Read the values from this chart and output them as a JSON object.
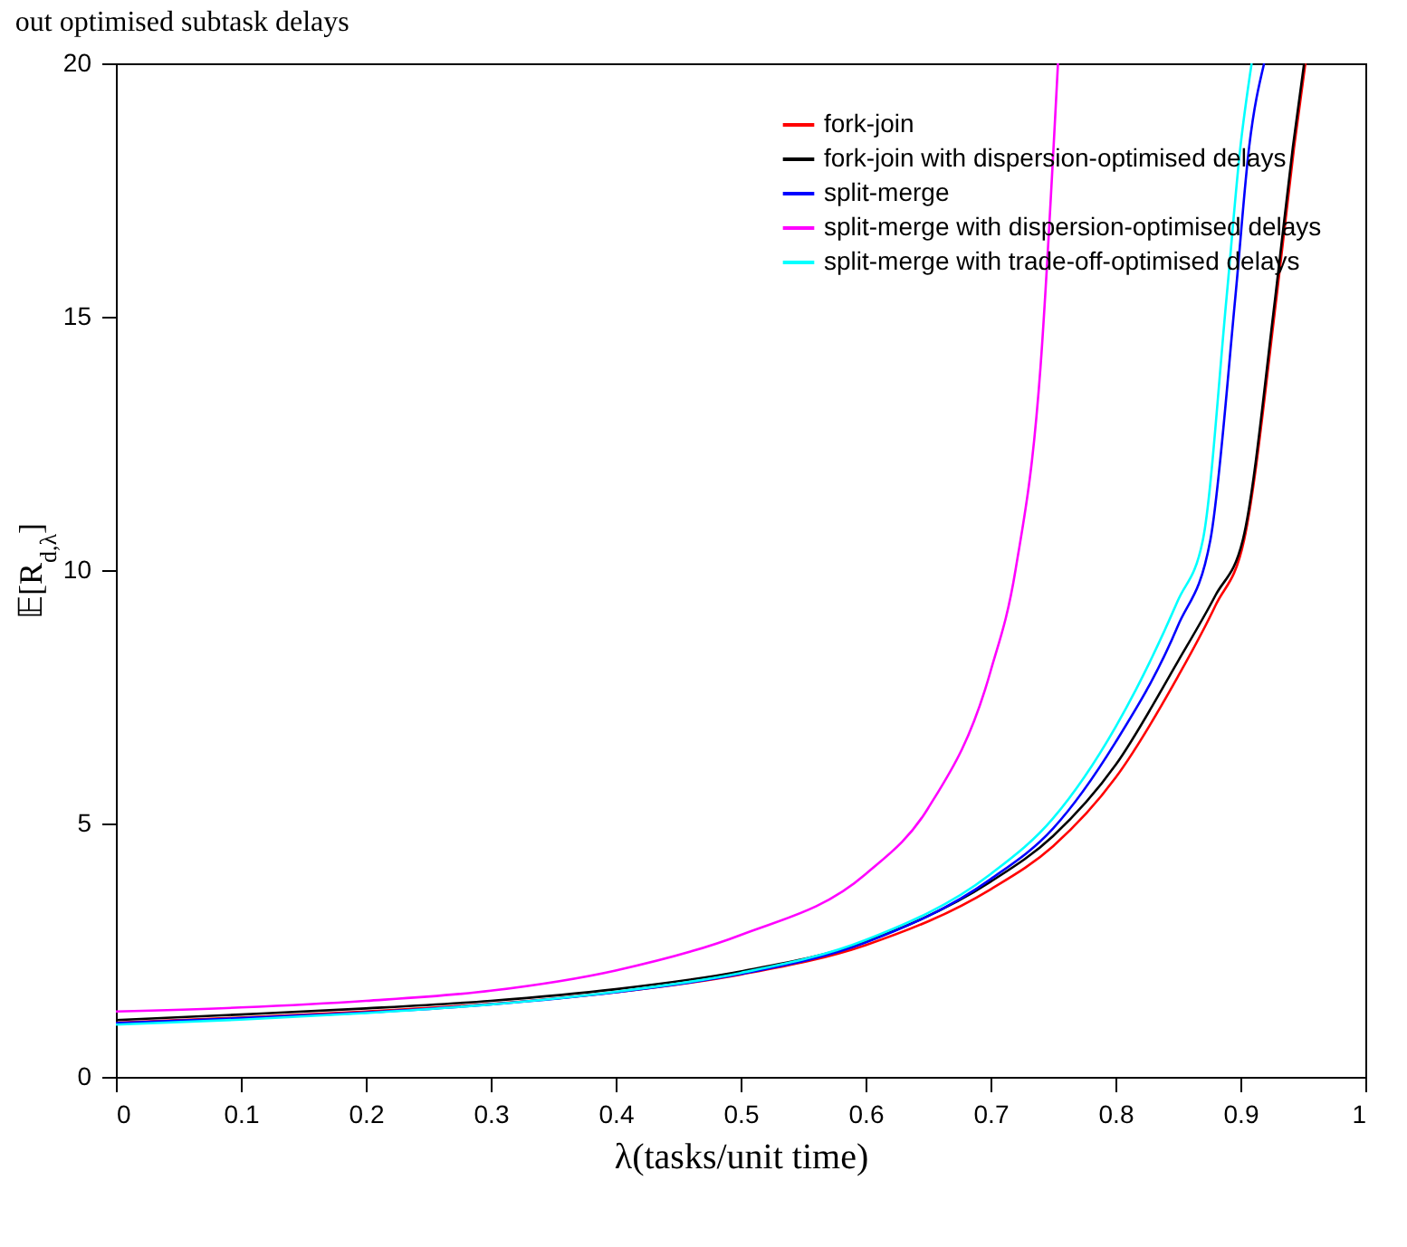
{
  "chart_data": {
    "type": "line",
    "title": "out optimised subtask delays",
    "xlabel": "λ(tasks/unit time)",
    "ylabel": "𝔼[R$_{d,λ}$]",
    "xlim": [
      0,
      1
    ],
    "ylim": [
      0,
      20
    ],
    "xticks": [
      0,
      0.1,
      0.2,
      0.3,
      0.4,
      0.5,
      0.6,
      0.7,
      0.8,
      0.9,
      1
    ],
    "yticks": [
      0,
      5,
      10,
      15,
      20
    ],
    "grid": false,
    "legend": "top right",
    "marker": "none",
    "line_style": "solid",
    "series": [
      {
        "name": "fork-join",
        "color": "#ff0000",
        "x": [
          0,
          0.1,
          0.2,
          0.3,
          0.4,
          0.5,
          0.6,
          0.7,
          0.75,
          0.8,
          0.85,
          0.88,
          0.903,
          0.929,
          0.943,
          0.952
        ],
        "values": [
          1.07,
          1.17,
          1.29,
          1.44,
          1.67,
          2.02,
          2.6,
          3.7,
          4.55,
          5.9,
          7.9,
          9.3,
          10.6,
          15.4,
          18.35,
          20
        ]
      },
      {
        "name": "fork-join with dispersion-optimised delays",
        "color": "#000000",
        "x": [
          0,
          0.1,
          0.2,
          0.3,
          0.4,
          0.5,
          0.6,
          0.7,
          0.75,
          0.8,
          0.85,
          0.88,
          0.902,
          0.928,
          0.942,
          0.951
        ],
        "values": [
          1.12,
          1.23,
          1.35,
          1.5,
          1.73,
          2.08,
          2.67,
          3.85,
          4.75,
          6.15,
          8.2,
          9.5,
          10.6,
          15.4,
          18.35,
          20
        ]
      },
      {
        "name": "split-merge",
        "color": "#0000ff",
        "x": [
          0,
          0.1,
          0.2,
          0.3,
          0.4,
          0.5,
          0.6,
          0.7,
          0.75,
          0.8,
          0.85,
          0.876,
          0.896,
          0.907,
          0.919
        ],
        "values": [
          1.06,
          1.16,
          1.27,
          1.43,
          1.67,
          2.03,
          2.65,
          3.9,
          4.9,
          6.6,
          8.9,
          10.6,
          15.4,
          18.35,
          20
        ]
      },
      {
        "name": "split-merge with dispersion-optimised delays",
        "color": "#ff00ff",
        "x": [
          0,
          0.1,
          0.2,
          0.3,
          0.4,
          0.5,
          0.6,
          0.65,
          0.7,
          0.72,
          0.74,
          0.754
        ],
        "values": [
          1.29,
          1.37,
          1.5,
          1.7,
          2.1,
          2.8,
          4.0,
          5.3,
          8.0,
          10,
          14,
          20
        ]
      },
      {
        "name": "split-merge with trade-off-optimised delays",
        "color": "#00ffff",
        "x": [
          0,
          0.1,
          0.2,
          0.3,
          0.4,
          0.5,
          0.6,
          0.7,
          0.75,
          0.8,
          0.85,
          0.87,
          0.889,
          0.9,
          0.909
        ],
        "values": [
          1.03,
          1.13,
          1.26,
          1.43,
          1.68,
          2.05,
          2.7,
          4.0,
          5.1,
          6.9,
          9.4,
          10.6,
          15.4,
          18.35,
          20
        ]
      }
    ]
  }
}
